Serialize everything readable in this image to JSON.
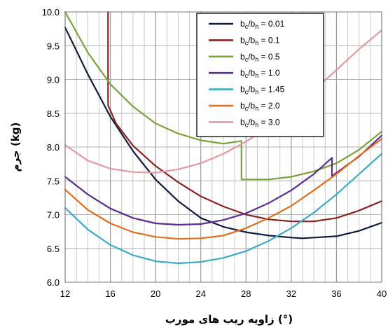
{
  "chart_data": {
    "type": "line",
    "xlabel": "زاویه ریب های مورب  (°)",
    "ylabel": "جرم (kg)",
    "xlim": [
      12,
      40
    ],
    "ylim": [
      6.0,
      10.0
    ],
    "xticks": [
      12,
      16,
      20,
      24,
      28,
      32,
      36,
      40
    ],
    "yticks": [
      6.0,
      6.5,
      7.0,
      7.5,
      8.0,
      8.5,
      9.0,
      9.5,
      10.0
    ],
    "xtick_labels": [
      "12",
      "16",
      "20",
      "24",
      "28",
      "32",
      "36",
      "40"
    ],
    "ytick_labels": [
      "6.0",
      "6.5",
      "7.0",
      "7.5",
      "8.0",
      "8.5",
      "9.0",
      "9.5",
      "10.0"
    ],
    "grid": true,
    "legend_position": "top-right",
    "series": [
      {
        "name": "b_c/b_h = 0.01",
        "label_main": "b",
        "label_sub1": "c",
        "label_mid": "/b",
        "label_sub2": "h",
        "label_tail": " = 0.01",
        "color": "#0d1b3e",
        "x": [
          12,
          14,
          16,
          18,
          20,
          22,
          24,
          26,
          28,
          30,
          32,
          33,
          34,
          36,
          38,
          40
        ],
        "y": [
          9.77,
          9.08,
          8.45,
          7.94,
          7.52,
          7.2,
          6.95,
          6.82,
          6.74,
          6.69,
          6.66,
          6.65,
          6.66,
          6.68,
          6.76,
          6.88
        ]
      },
      {
        "name": "b_c/b_h = 0.1",
        "label_main": "b",
        "label_sub1": "c",
        "label_mid": "/b",
        "label_sub2": "h",
        "label_tail": " = 0.1",
        "color": "#8b2424",
        "x": [
          15.8,
          15.8,
          15.8,
          16.5,
          18,
          20,
          22,
          24,
          26,
          28,
          30,
          32,
          34,
          36,
          38,
          40
        ],
        "y": [
          10.0,
          9.0,
          8.62,
          8.35,
          8.02,
          7.72,
          7.48,
          7.27,
          7.12,
          7.0,
          6.93,
          6.9,
          6.9,
          6.95,
          7.06,
          7.2
        ]
      },
      {
        "name": "b_c/b_h = 0.5",
        "label_main": "b",
        "label_sub1": "c",
        "label_mid": "/b",
        "label_sub2": "h",
        "label_tail": " = 0.5",
        "color": "#77a33a",
        "x": [
          12,
          14,
          16,
          18,
          20,
          22,
          24,
          26,
          27.6,
          27.6,
          30,
          32,
          34,
          36,
          38,
          40
        ],
        "y": [
          10.0,
          9.4,
          8.93,
          8.6,
          8.35,
          8.2,
          8.1,
          8.05,
          8.09,
          7.52,
          7.52,
          7.56,
          7.64,
          7.76,
          7.96,
          8.23
        ]
      },
      {
        "name": "b_c/b_h = 1.0",
        "label_main": "b",
        "label_sub1": "c",
        "label_mid": "/b",
        "label_sub2": "h",
        "label_tail": " = 1.0",
        "color": "#5b2d8e",
        "x": [
          12,
          14,
          16,
          18,
          20,
          22,
          24,
          26,
          28,
          30,
          32,
          34,
          35.6,
          35.6,
          36,
          38,
          40
        ],
        "y": [
          7.56,
          7.3,
          7.09,
          6.95,
          6.87,
          6.85,
          6.86,
          6.92,
          7.02,
          7.17,
          7.36,
          7.6,
          7.84,
          7.57,
          7.62,
          7.86,
          8.17
        ]
      },
      {
        "name": "b_c/b_h = 1.45",
        "label_main": "b",
        "label_sub1": "c",
        "label_mid": "/b",
        "label_sub2": "h",
        "label_tail": " = 1.45",
        "color": "#3aaac8",
        "x": [
          12,
          14,
          16,
          18,
          20,
          22,
          24,
          26,
          28,
          30,
          32,
          34,
          36,
          38,
          40
        ],
        "y": [
          7.1,
          6.78,
          6.55,
          6.4,
          6.31,
          6.28,
          6.3,
          6.36,
          6.46,
          6.61,
          6.8,
          7.03,
          7.3,
          7.6,
          7.9
        ]
      },
      {
        "name": "b_c/b_h = 2.0",
        "label_main": "b",
        "label_sub1": "c",
        "label_mid": "/b",
        "label_sub2": "h",
        "label_tail": " = 2.0",
        "color": "#e36c1a",
        "x": [
          12,
          14,
          16,
          18,
          20,
          22,
          24,
          26,
          28,
          30,
          32,
          34,
          36,
          38,
          40
        ],
        "y": [
          7.37,
          7.07,
          6.87,
          6.74,
          6.67,
          6.64,
          6.65,
          6.69,
          6.8,
          6.95,
          7.13,
          7.36,
          7.6,
          7.87,
          8.12
        ]
      },
      {
        "name": "b_c/b_h = 3.0",
        "label_main": "b",
        "label_sub1": "c",
        "label_mid": "/b",
        "label_sub2": "h",
        "label_tail": " = 3.0",
        "color": "#e39a9f",
        "x": [
          12,
          14,
          16,
          18,
          20,
          22,
          24,
          26,
          28,
          30,
          32,
          34,
          36,
          38,
          40
        ],
        "y": [
          8.03,
          7.8,
          7.68,
          7.63,
          7.62,
          7.67,
          7.76,
          7.9,
          8.08,
          8.3,
          8.57,
          8.84,
          9.14,
          9.45,
          9.73
        ]
      }
    ]
  }
}
